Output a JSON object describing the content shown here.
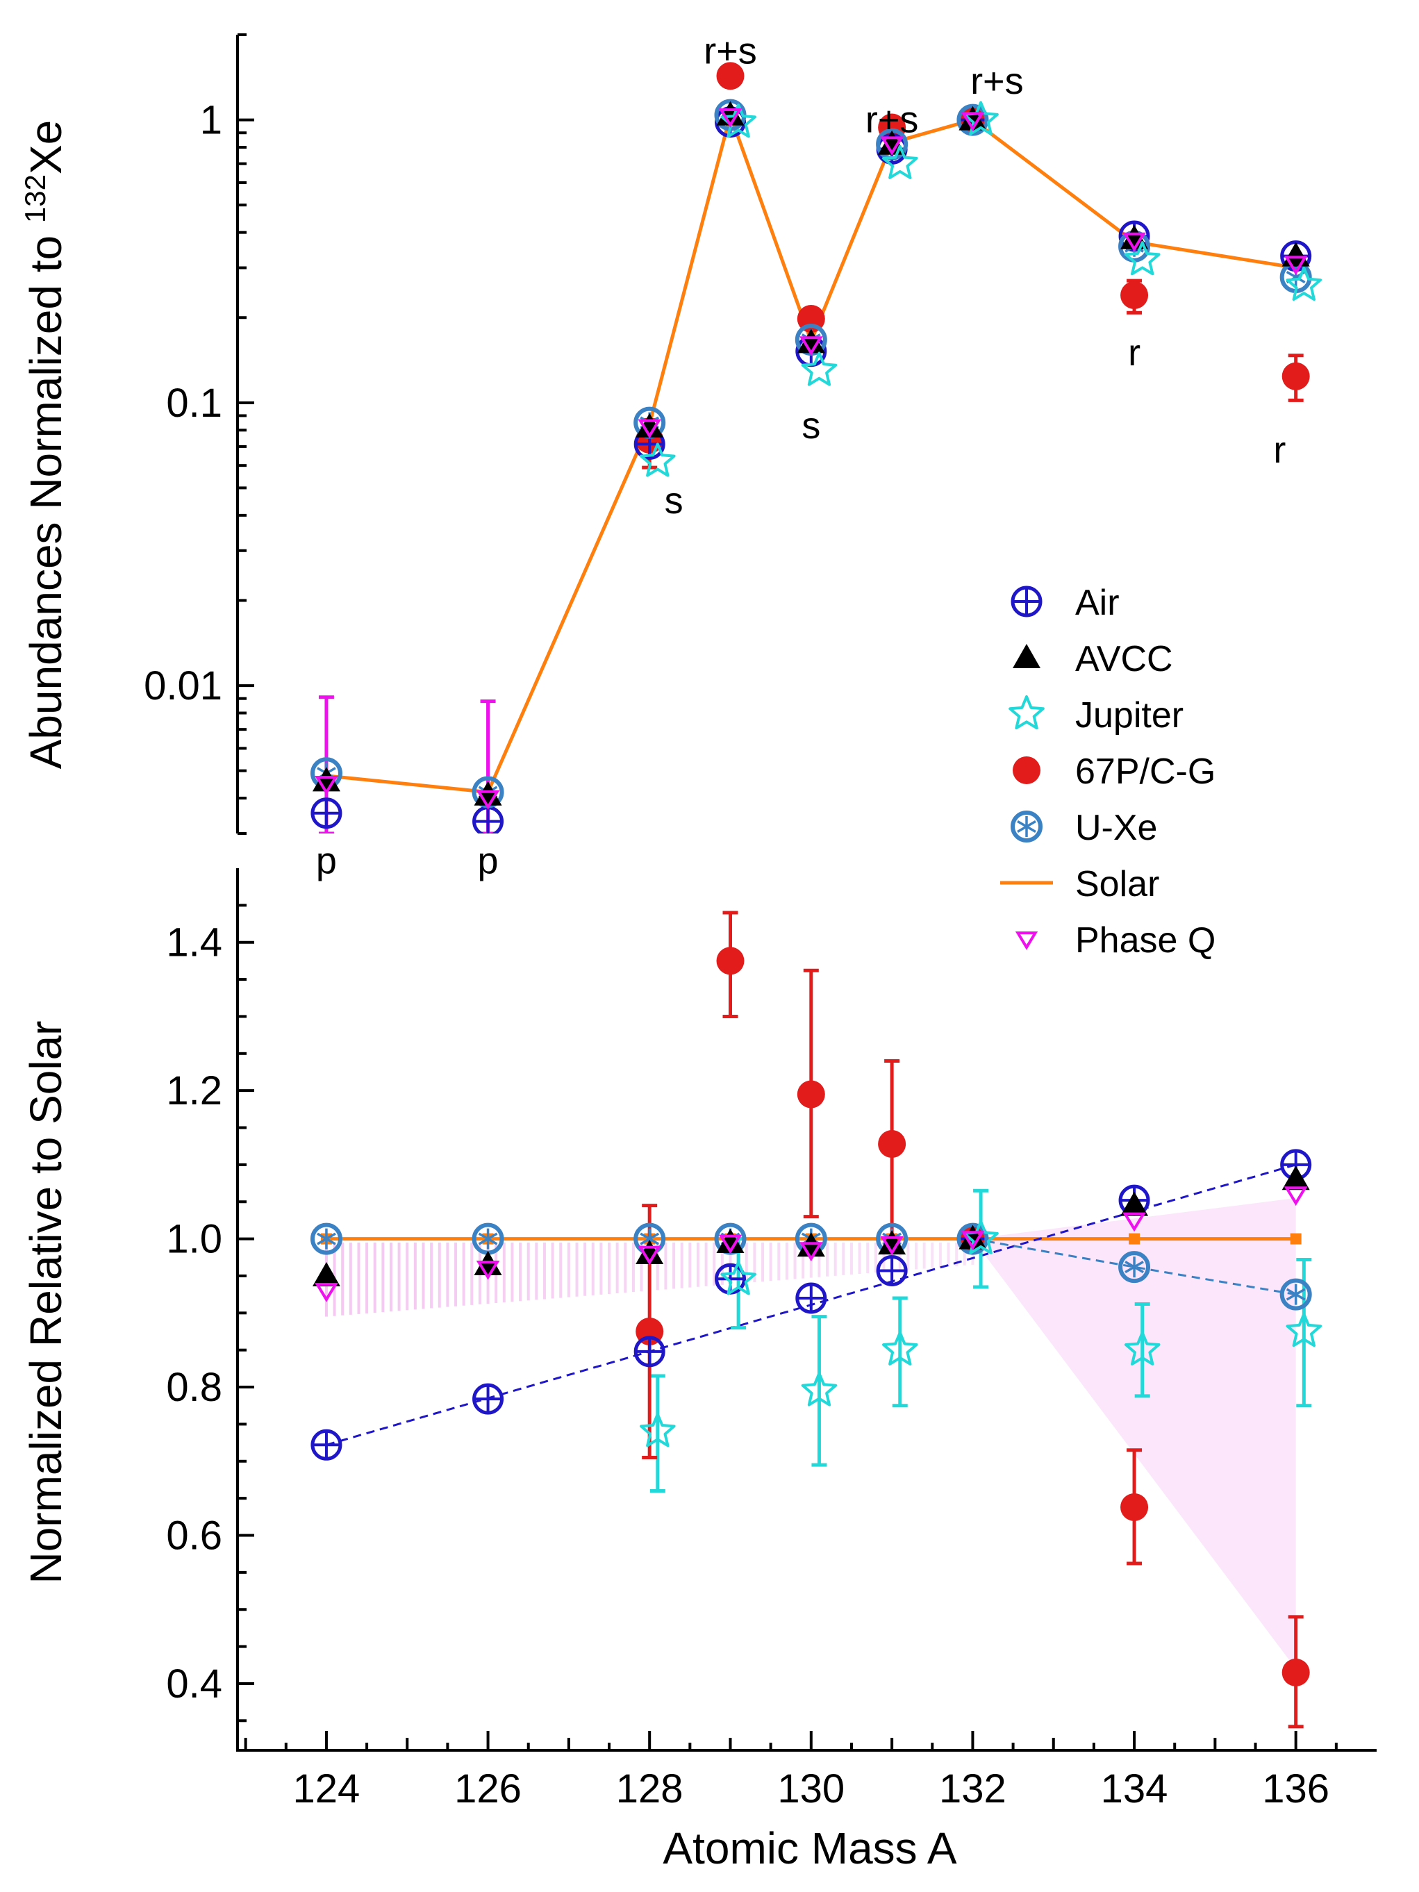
{
  "chart_data": [
    {
      "type": "scatter",
      "panel": "top",
      "yscale": "log",
      "ylabel": "Abundances Normalized to {sup:132}Xe",
      "ylabel_parts": {
        "prefix": "Abundances Normalized to ",
        "sup": "132",
        "suffix": "Xe"
      },
      "ylim": [
        0.003,
        2
      ],
      "xlim": [
        122.9,
        137.0
      ],
      "ytick_labels": [
        "0.01",
        "0.1",
        "1"
      ],
      "annotations": [
        {
          "text": "p",
          "x": 124,
          "y": 0.0024
        },
        {
          "text": "p",
          "x": 126,
          "y": 0.0024
        },
        {
          "text": "s",
          "x": 128.3,
          "y": 0.045
        },
        {
          "text": "r+s",
          "x": 129,
          "y": 1.75
        },
        {
          "text": "s",
          "x": 130,
          "y": 0.083
        },
        {
          "text": "r+s",
          "x": 131,
          "y": 1.0
        },
        {
          "text": "r+s",
          "x": 132.3,
          "y": 1.37
        },
        {
          "text": "r",
          "x": 134,
          "y": 0.15
        },
        {
          "text": "r",
          "x": 135.8,
          "y": 0.068
        }
      ],
      "series": [
        {
          "name": "Solar",
          "x": [
            124,
            126,
            128,
            129,
            130,
            131,
            132,
            134,
            136
          ],
          "values": [
            0.0048,
            0.0042,
            0.084,
            1.04,
            0.165,
            0.83,
            1.0,
            0.37,
            0.3
          ]
        },
        {
          "name": "Air",
          "x": [
            124,
            126,
            128,
            129,
            130,
            131,
            132,
            134,
            136
          ],
          "values": [
            0.00354,
            0.00331,
            0.0714,
            0.983,
            0.152,
            0.789,
            1.0,
            0.388,
            0.33
          ]
        },
        {
          "name": "AVCC",
          "x": [
            124,
            126,
            128,
            129,
            130,
            131,
            132,
            134,
            136
          ],
          "values": [
            0.0046,
            0.0041,
            0.082,
            1.04,
            0.163,
            0.82,
            1.0,
            0.38,
            0.33
          ]
        },
        {
          "name": "Jupiter",
          "x": [
            124.1,
            126.1,
            128.1,
            129.1,
            130.1,
            131.1,
            132.1,
            134.1,
            136.1
          ],
          "values": [
            null,
            null,
            0.062,
            0.98,
            0.13,
            0.7,
            1.0,
            0.32,
            0.26
          ]
        },
        {
          "name": "67P/C-G",
          "x": [
            128,
            129,
            130,
            131,
            132,
            134,
            136
          ],
          "values": [
            0.074,
            1.43,
            0.198,
            0.94,
            1.0,
            0.24,
            0.124
          ],
          "err_lo": [
            0.059,
            null,
            null,
            null,
            null,
            0.208,
            0.102
          ],
          "err_hi": [
            0.087,
            null,
            null,
            null,
            null,
            0.27,
            0.147
          ]
        },
        {
          "name": "U-Xe",
          "x": [
            124,
            126,
            128,
            129,
            130,
            131,
            132,
            134,
            136
          ],
          "values": [
            0.0049,
            0.0042,
            0.085,
            1.04,
            0.167,
            0.82,
            1.0,
            0.357,
            0.278
          ]
        },
        {
          "name": "Phase Q",
          "x": [
            124,
            126,
            128,
            129,
            130,
            131,
            132,
            134,
            136
          ],
          "values": [
            0.0045,
            0.004,
            0.082,
            1.03,
            0.161,
            0.82,
            1.0,
            0.375,
            0.31
          ],
          "err_lo": [
            0.003,
            0.003,
            null,
            null,
            null,
            null,
            null,
            null,
            null
          ],
          "err_hi": [
            0.0091,
            0.0088,
            null,
            null,
            null,
            null,
            null,
            null,
            null
          ]
        }
      ]
    },
    {
      "type": "scatter",
      "panel": "bottom",
      "yscale": "linear",
      "ylabel": "Normalized Relative to Solar",
      "xlabel": "Atomic Mass A",
      "ylim": [
        0.31,
        1.5
      ],
      "xlim": [
        122.9,
        137.0
      ],
      "ytick_labels": [
        "0.4",
        "0.6",
        "0.8",
        "1.0",
        "1.2",
        "1.4"
      ],
      "xtick_labels": [
        "124",
        "126",
        "128",
        "130",
        "132",
        "134",
        "136"
      ],
      "series": [
        {
          "name": "Solar",
          "x": [
            124,
            126,
            128,
            129,
            130,
            131,
            132,
            134,
            136
          ],
          "values": [
            1,
            1,
            1,
            1,
            1,
            1,
            1,
            1,
            1
          ]
        },
        {
          "name": "Air",
          "x": [
            124,
            126,
            128,
            129,
            130,
            131,
            132,
            134,
            136
          ],
          "values": [
            0.722,
            0.784,
            0.848,
            0.946,
            0.92,
            0.957,
            1.0,
            1.052,
            1.1
          ]
        },
        {
          "name": "AVCC",
          "x": [
            124,
            126,
            128,
            129,
            130,
            131,
            132,
            134,
            136
          ],
          "values": [
            0.95,
            0.965,
            0.98,
            0.995,
            0.99,
            0.993,
            1.0,
            1.045,
            1.08
          ]
        },
        {
          "name": "Jupiter",
          "x": [
            128.1,
            129.1,
            130.1,
            131.1,
            132.1,
            134.1,
            136.1
          ],
          "values": [
            0.74,
            0.945,
            0.795,
            0.85,
            1.0,
            0.85,
            0.875
          ],
          "err_lo": [
            0.66,
            0.88,
            0.695,
            0.775,
            0.935,
            0.788,
            0.775
          ],
          "err_hi": [
            0.815,
            1.0,
            0.895,
            0.92,
            1.065,
            0.912,
            0.972
          ]
        },
        {
          "name": "67P/C-G",
          "x": [
            128,
            129,
            130,
            131,
            132,
            134,
            136
          ],
          "values": [
            0.875,
            1.375,
            1.195,
            1.128,
            1.0,
            0.638,
            0.415
          ],
          "err_lo": [
            0.705,
            1.3,
            1.03,
            1.0,
            null,
            0.562,
            0.342
          ],
          "err_hi": [
            1.045,
            1.44,
            1.362,
            1.24,
            null,
            0.715,
            0.49
          ]
        },
        {
          "name": "U-Xe",
          "x": [
            124,
            126,
            128,
            129,
            130,
            131,
            132,
            134,
            136
          ],
          "values": [
            1,
            1,
            1,
            1,
            1,
            1,
            1,
            0.962,
            0.925
          ]
        },
        {
          "name": "Phase Q",
          "x": [
            124,
            126,
            128,
            129,
            130,
            131,
            132,
            134,
            136
          ],
          "values": [
            0.93,
            0.96,
            0.98,
            0.995,
            0.985,
            0.993,
            1.0,
            1.025,
            1.06
          ]
        }
      ],
      "shaded_regions": [
        {
          "style": "hatched",
          "x": [
            124,
            132
          ],
          "upper": [
            0.995,
            0.995
          ],
          "lower": [
            0.895,
            0.965
          ]
        },
        {
          "style": "filled",
          "x": [
            132,
            136
          ],
          "upper": [
            1.0,
            1.055
          ],
          "lower": [
            1.0,
            0.42
          ]
        }
      ]
    }
  ],
  "legend": {
    "placement": "right-middle",
    "entries": [
      {
        "label": "Air",
        "color": "#1f16c8",
        "marker": "circle-plus"
      },
      {
        "label": "AVCC",
        "color": "#000000",
        "marker": "triangle-up"
      },
      {
        "label": "Jupiter",
        "color": "#22d8d8",
        "marker": "star-open"
      },
      {
        "label": "67P/C-G",
        "color": "#e21b1b",
        "marker": "circle-filled"
      },
      {
        "label": "U-Xe",
        "color": "#3b82c4",
        "marker": "circle-asterisk"
      },
      {
        "label": "Solar",
        "color": "#ff7f0e",
        "marker": "line"
      },
      {
        "label": "Phase Q",
        "color": "#ee11ee",
        "marker": "triangle-down-open"
      }
    ]
  }
}
